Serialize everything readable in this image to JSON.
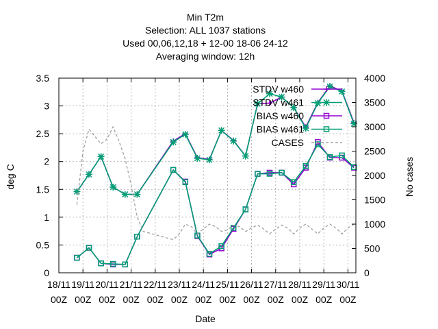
{
  "chart_data": {
    "type": "line",
    "title_lines": [
      "Min T2m",
      "Selection: ALL   1037 stations",
      "Used  00,06,12,18  + 12-00 18-06 24-12",
      "Averaging window: 12h"
    ],
    "xlabel": "Date",
    "ylabel": "deg C",
    "y2label": "No cases",
    "x_ticks": [
      [
        "18/11",
        "00Z"
      ],
      [
        "19/11",
        "00Z"
      ],
      [
        "20/11",
        "00Z"
      ],
      [
        "21/11",
        "00Z"
      ],
      [
        "22/11",
        "00Z"
      ],
      [
        "23/11",
        "00Z"
      ],
      [
        "24/11",
        "00Z"
      ],
      [
        "25/11",
        "00Z"
      ],
      [
        "26/11",
        "00Z"
      ],
      [
        "27/11",
        "00Z"
      ],
      [
        "28/11",
        "00Z"
      ],
      [
        "29/11",
        "00Z"
      ],
      [
        "30/11",
        "00Z"
      ]
    ],
    "xlim_days": [
      18,
      30.33
    ],
    "ylim": [
      0,
      3.5
    ],
    "y_ticks": [
      "0",
      "0.5",
      "1",
      "1.5",
      "2",
      "2.5",
      "3",
      "3.5"
    ],
    "y2lim": [
      0,
      4000
    ],
    "y2_ticks": [
      "0",
      "500",
      "1000",
      "1500",
      "2000",
      "2500",
      "3000",
      "3500",
      "4000"
    ],
    "grid": true,
    "legend_position": "top-right",
    "series": [
      {
        "name": "STDV w460",
        "color": "#9400d3",
        "marker": "plus",
        "axis": "y1",
        "x": [
          18.75,
          19.25,
          19.75,
          20.25,
          20.75,
          21.25,
          22.75,
          23.25,
          23.75,
          24.25,
          24.75,
          25.25,
          25.75,
          26.25,
          26.75,
          27.25,
          27.75,
          28.25,
          28.75,
          29.25,
          29.75,
          30.25
        ],
        "y": [
          1.46,
          1.77,
          2.09,
          1.54,
          1.41,
          1.41,
          2.37,
          2.5,
          2.07,
          2.04,
          2.56,
          2.38,
          2.1,
          3.04,
          3.05,
          3.16,
          2.97,
          2.62,
          3.06,
          3.36,
          3.27,
          2.7
        ]
      },
      {
        "name": "STDV w461",
        "color": "#009e73",
        "marker": "x",
        "axis": "y1",
        "x": [
          18.75,
          19.25,
          19.75,
          20.25,
          20.75,
          21.25,
          22.75,
          23.25,
          23.75,
          24.25,
          24.75,
          25.25,
          25.75,
          26.25,
          26.75,
          27.25,
          27.75,
          28.25,
          28.75,
          29.25,
          29.75,
          30.25
        ],
        "y": [
          1.46,
          1.77,
          2.09,
          1.54,
          1.41,
          1.41,
          2.35,
          2.49,
          2.06,
          2.03,
          2.56,
          2.37,
          2.1,
          3.04,
          3.22,
          3.16,
          2.97,
          2.6,
          3.05,
          3.35,
          3.26,
          2.68
        ]
      },
      {
        "name": "BIAS w460",
        "color": "#9400d3",
        "marker": "square",
        "axis": "y1",
        "x": [
          18.75,
          19.25,
          19.75,
          20.25,
          20.75,
          21.25,
          22.75,
          23.25,
          23.75,
          24.25,
          24.75,
          25.25,
          25.75,
          26.25,
          26.75,
          27.25,
          27.75,
          28.25,
          28.75,
          29.25,
          29.75,
          30.25
        ],
        "y": [
          0.27,
          0.45,
          0.17,
          0.15,
          0.15,
          0.65,
          1.85,
          1.64,
          0.66,
          0.33,
          0.44,
          0.79,
          1.14,
          1.78,
          1.8,
          1.8,
          1.59,
          1.89,
          2.35,
          2.07,
          2.07,
          1.89
        ]
      },
      {
        "name": "BIAS w461",
        "color": "#009e73",
        "marker": "square",
        "axis": "y1",
        "x": [
          18.75,
          19.25,
          19.75,
          20.25,
          20.75,
          21.25,
          22.75,
          23.25,
          23.75,
          24.25,
          24.75,
          25.25,
          25.75,
          26.25,
          26.75,
          27.25,
          27.75,
          28.25,
          28.75,
          29.25,
          29.75,
          30.25
        ],
        "y": [
          0.27,
          0.45,
          0.17,
          0.16,
          0.15,
          0.65,
          1.85,
          1.63,
          0.67,
          0.34,
          0.48,
          0.81,
          1.14,
          1.78,
          1.78,
          1.8,
          1.63,
          1.92,
          2.31,
          2.08,
          2.11,
          1.9
        ]
      },
      {
        "name": "CASES",
        "color": "#a0a0a0",
        "marker": "none",
        "dash": true,
        "axis": "y2",
        "x": [
          18.75,
          19.0,
          19.25,
          19.5,
          19.75,
          20.0,
          20.25,
          20.5,
          20.75,
          21.0,
          21.25,
          21.5,
          22.75,
          23.0,
          23.25,
          23.5,
          23.75,
          24.0,
          24.25,
          24.5,
          24.75,
          25.0,
          25.25,
          25.5,
          25.75,
          26.0,
          26.25,
          26.5,
          26.75,
          27.0,
          27.25,
          27.5,
          27.75,
          28.0,
          28.25,
          28.5,
          28.75,
          29.0,
          29.25,
          29.5,
          29.75,
          30.0,
          30.25
        ],
        "y": [
          1400,
          2500,
          2950,
          2800,
          2650,
          2750,
          3000,
          2700,
          2350,
          1800,
          1150,
          850,
          680,
          800,
          1000,
          950,
          800,
          900,
          1000,
          950,
          850,
          880,
          980,
          950,
          850,
          920,
          980,
          900,
          800,
          900,
          980,
          920,
          800,
          920,
          1000,
          900,
          800,
          920,
          1000,
          920,
          800,
          920,
          1000
        ]
      }
    ]
  }
}
